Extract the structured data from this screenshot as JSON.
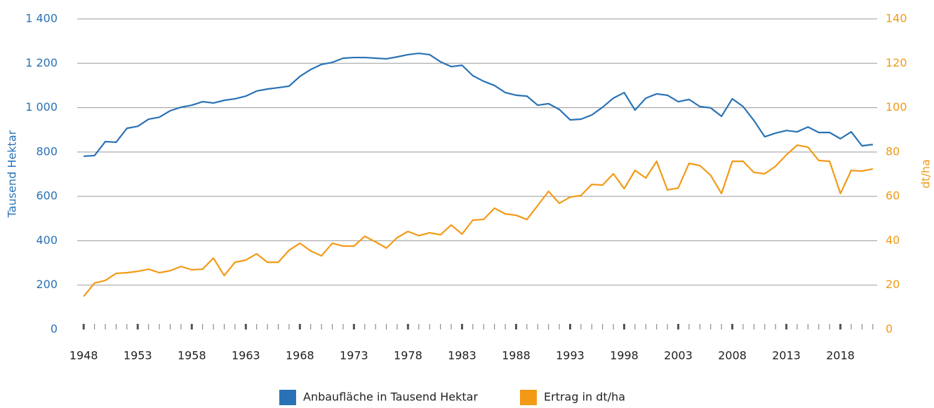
{
  "chart_data": {
    "type": "line",
    "ylabel": "Tausend Hektar",
    "y2label": "dt/ha",
    "x": [
      1948,
      1949,
      1950,
      1951,
      1952,
      1953,
      1954,
      1955,
      1956,
      1957,
      1958,
      1959,
      1960,
      1961,
      1962,
      1963,
      1964,
      1965,
      1966,
      1967,
      1968,
      1969,
      1970,
      1971,
      1972,
      1973,
      1974,
      1975,
      1976,
      1977,
      1978,
      1979,
      1980,
      1981,
      1982,
      1983,
      1984,
      1985,
      1986,
      1987,
      1988,
      1989,
      1990,
      1991,
      1992,
      1993,
      1994,
      1995,
      1996,
      1997,
      1998,
      1999,
      2000,
      2001,
      2002,
      2003,
      2004,
      2005,
      2006,
      2007,
      2008,
      2009,
      2010,
      2011,
      2012,
      2013,
      2014,
      2015,
      2016,
      2017,
      2018,
      2019,
      2020,
      2021
    ],
    "series": [
      {
        "name": "Anbaufläche in Tausend Hektar",
        "color": "#2a72b5",
        "values": [
          781,
          784,
          847,
          844,
          907,
          916,
          948,
          957,
          986,
          1002,
          1011,
          1027,
          1021,
          1033,
          1040,
          1052,
          1075,
          1084,
          1090,
          1097,
          1141,
          1172,
          1195,
          1204,
          1223,
          1226,
          1226,
          1223,
          1220,
          1229,
          1239,
          1245,
          1239,
          1207,
          1185,
          1191,
          1144,
          1119,
          1100,
          1068,
          1056,
          1052,
          1011,
          1018,
          992,
          945,
          948,
          967,
          1002,
          1043,
          1068,
          989,
          1043,
          1062,
          1056,
          1027,
          1037,
          1005,
          999,
          961,
          1040,
          1005,
          942,
          869,
          885,
          897,
          891,
          913,
          888,
          888,
          860,
          891,
          828,
          834
        ]
      },
      {
        "name": "Ertrag in dt/ha",
        "color": "#f29a16",
        "axis": "y2",
        "values": [
          14.9,
          20.9,
          22.1,
          25.3,
          25.6,
          26.2,
          27.2,
          25.6,
          26.5,
          28.4,
          26.9,
          27.2,
          32.2,
          24.3,
          30.3,
          31.3,
          34.1,
          30.3,
          30.3,
          35.7,
          38.9,
          35.4,
          33.2,
          38.9,
          37.6,
          37.6,
          42.0,
          39.5,
          36.7,
          41.4,
          44.2,
          42.3,
          43.6,
          42.7,
          47.1,
          43.0,
          49.3,
          49.6,
          54.7,
          52.1,
          51.5,
          49.6,
          55.9,
          62.3,
          56.9,
          59.7,
          60.4,
          65.4,
          65.1,
          70.2,
          63.5,
          71.7,
          68.3,
          75.8,
          62.9,
          63.8,
          74.9,
          73.9,
          69.5,
          61.3,
          75.8,
          75.8,
          70.8,
          70.2,
          73.6,
          78.7,
          83.1,
          82.2,
          76.2,
          75.8,
          61.3,
          71.7,
          71.4,
          72.4
        ]
      }
    ],
    "xlim": [
      1947.4,
      2021.4
    ],
    "xticks": [
      1948,
      1953,
      1958,
      1963,
      1968,
      1973,
      1978,
      1983,
      1988,
      1993,
      1998,
      2003,
      2008,
      2013,
      2018
    ],
    "ylim": [
      0,
      1400
    ],
    "yticks": [
      0,
      200,
      400,
      600,
      800,
      {
        "value": 1000,
        "label": "1 000"
      },
      {
        "value": 1200,
        "label": "1 200"
      },
      {
        "value": 1400,
        "label": "1 400"
      }
    ],
    "y2lim": [
      0,
      140
    ],
    "y2ticks": [
      0,
      20,
      40,
      60,
      80,
      100,
      120,
      140
    ],
    "grid": true
  }
}
